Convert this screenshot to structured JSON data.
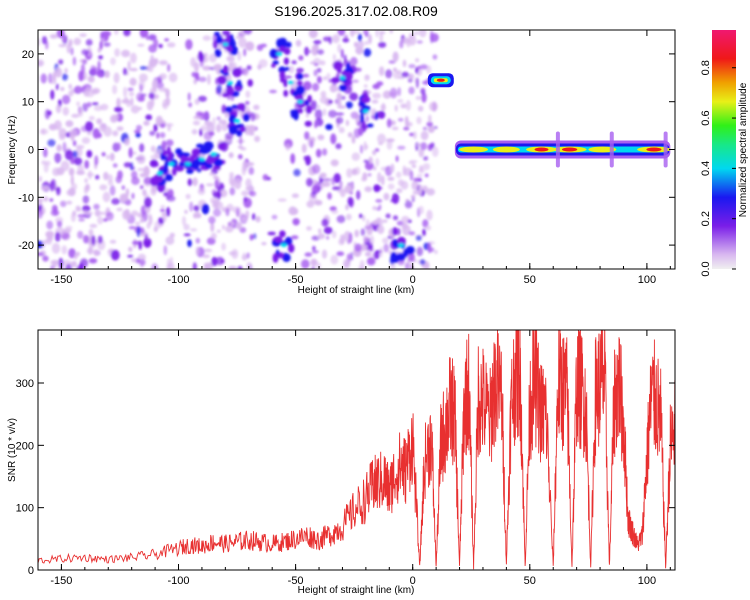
{
  "figure_title": "S196.2025.317.02.08.R09",
  "chart_data": [
    {
      "type": "heatmap",
      "title": "",
      "xlabel": "Height of straight line (km)",
      "ylabel": "Frequency (Hz)",
      "xlim": [
        -160,
        112
      ],
      "ylim": [
        -25,
        25
      ],
      "xticks": [
        -150,
        -100,
        -50,
        0,
        50,
        100
      ],
      "yticks": [
        -20,
        -10,
        0,
        10,
        20
      ],
      "grid": false,
      "colormap": [
        "#d9b8f0",
        "#a85ff0",
        "#7a1ee8",
        "#1a18f0",
        "#00d8f0",
        "#18e888",
        "#e8f018",
        "#f0a000",
        "#f01818",
        "#f01870"
      ],
      "colorbar": {
        "label": "Normalized spectral amplitude",
        "ticks": [
          0.0,
          0.2,
          0.4,
          0.6,
          0.8
        ],
        "range": [
          0,
          0.95
        ]
      },
      "features": [
        {
          "x_range": [
            -160,
            10
          ],
          "y_range": [
            -25,
            25
          ],
          "description": "scattered weak noise"
        },
        {
          "x": 10,
          "y": 14.5,
          "peak": 0.85
        },
        {
          "x_range": [
            18,
            110
          ],
          "y": 0,
          "peak_values": [
            [
              26,
              0.65
            ],
            [
              40,
              0.55
            ],
            [
              55,
              0.75
            ],
            [
              67,
              0.9
            ],
            [
              81,
              0.6
            ],
            [
              103,
              0.88
            ]
          ]
        }
      ]
    },
    {
      "type": "line",
      "title": "",
      "xlabel": "Height of straight line (km)",
      "ylabel": "SNR (10 * v/v)",
      "xlim": [
        -160,
        112
      ],
      "ylim": [
        0,
        385
      ],
      "xticks": [
        -150,
        -100,
        -50,
        0,
        50,
        100
      ],
      "yticks": [
        0,
        100,
        200,
        300
      ],
      "grid": false,
      "color": "#e83030",
      "x": [
        -160,
        -150,
        -140,
        -130,
        -120,
        -110,
        -100,
        -95,
        -90,
        -85,
        -80,
        -75,
        -70,
        -65,
        -60,
        -55,
        -50,
        -45,
        -40,
        -35,
        -30,
        -25,
        -20,
        -17,
        -15,
        -12,
        -10,
        -8,
        -5,
        -3,
        0,
        3,
        5,
        8,
        10,
        12,
        14,
        16,
        18,
        20,
        22,
        24,
        26,
        28,
        30,
        33,
        35,
        38,
        40,
        42,
        44,
        46,
        48,
        50,
        52,
        55,
        57,
        60,
        62,
        64,
        66,
        68,
        70,
        72,
        74,
        76,
        78,
        80,
        82,
        84,
        86,
        88,
        90,
        92,
        94,
        96,
        98,
        100,
        102,
        104,
        106,
        108,
        110,
        112
      ],
      "y": [
        15,
        18,
        20,
        17,
        20,
        25,
        35,
        40,
        38,
        45,
        42,
        45,
        48,
        45,
        42,
        45,
        50,
        55,
        48,
        58,
        70,
        95,
        115,
        135,
        140,
        145,
        125,
        150,
        170,
        160,
        210,
        5,
        170,
        215,
        5,
        200,
        230,
        260,
        250,
        5,
        270,
        290,
        5,
        280,
        270,
        240,
        300,
        280,
        10,
        260,
        320,
        310,
        5,
        260,
        310,
        250,
        250,
        5,
        300,
        290,
        280,
        5,
        300,
        290,
        260,
        5,
        280,
        300,
        310,
        5,
        270,
        300,
        240,
        80,
        60,
        40,
        55,
        180,
        280,
        270,
        240,
        5,
        200,
        230
      ]
    }
  ]
}
